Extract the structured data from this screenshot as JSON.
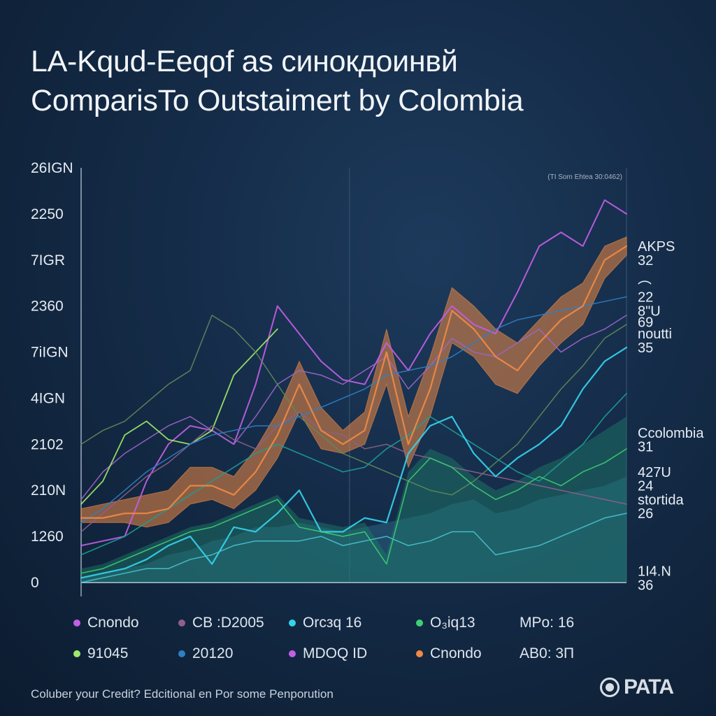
{
  "title_lines": [
    "LA-Kqud-Eeqof as синокдоинвй",
    "ComparisTo Outstaimert by Colombia"
  ],
  "footer": "Coluber your Credit? Edcitional en Por some Penporution",
  "logo": "PATA",
  "colors": {
    "orange": "#ef8a45",
    "purple": "#c35ee6",
    "mauve": "#8f5f8a",
    "cyan": "#35d3ea",
    "green": "#3ecf73",
    "lime": "#9fe86a",
    "teal": "#1e9c93",
    "blue": "#2f7fc4",
    "olive": "#5e8a5a",
    "axis": "#b9c6d6"
  },
  "legend": [
    [
      {
        "label": "Cnondo",
        "color": "#c35ee6"
      },
      {
        "label": "CB :D2005",
        "color": "#8f5f8a"
      },
      {
        "label": "Orcзq 16",
        "color": "#35d3ea"
      },
      {
        "label": "O₃iq13",
        "color": "#3ecf73"
      },
      {
        "label": "MPo: 16",
        "color": null
      }
    ],
    [
      {
        "label": "91045",
        "color": "#9fe86a"
      },
      {
        "label": "20120",
        "color": "#2f7fc4"
      },
      {
        "label": "MDOQ ID",
        "color": "#c35ee6"
      },
      {
        "label": "Cnondo",
        "color": "#ef8a45"
      },
      {
        "label": "AB0: 3П",
        "color": null
      }
    ]
  ],
  "chart_data": {
    "type": "line",
    "title": "LA-Kqud-Eeqof as синокдоинвй ComparisTo Outstaimert by Colombia",
    "yticks": [
      "0",
      "1260",
      "210N",
      "2102",
      "4IGN",
      "7iIGN",
      "2360",
      "7IGR",
      "2250",
      "26IGN"
    ],
    "ylim": [
      0,
      9
    ],
    "xlim": [
      0,
      100
    ],
    "grid": "vertical",
    "annotation": "(TI Som Ehtea 30:0462)",
    "right_labels": [
      {
        "text": "AKPS",
        "y": 7.3,
        "color": "#ef8a45"
      },
      {
        "text": "32",
        "y": 7.0,
        "color": null
      },
      {
        "text": "⌒",
        "y": 6.4,
        "color": null
      },
      {
        "text": "22",
        "y": 6.2,
        "color": null
      },
      {
        "text": "8\"U",
        "y": 5.9,
        "color": null
      },
      {
        "text": "69",
        "y": 5.65,
        "color": null
      },
      {
        "text": "noutti",
        "y": 5.4,
        "color": null
      },
      {
        "text": "35",
        "y": 5.1,
        "color": null
      },
      {
        "text": "Ccolombia",
        "y": 3.25,
        "color": null
      },
      {
        "text": "31",
        "y": 2.95,
        "color": null
      },
      {
        "text": "427U",
        "y": 2.4,
        "color": null
      },
      {
        "text": "24",
        "y": 2.1,
        "color": null
      },
      {
        "text": "stortida",
        "y": 1.8,
        "color": null
      },
      {
        "text": "26",
        "y": 1.5,
        "color": null
      },
      {
        "text": "1I4.N",
        "y": 0.25,
        "color": null
      },
      {
        "text": "36",
        "y": -0.05,
        "color": null
      }
    ],
    "x": [
      0,
      4,
      8,
      12,
      16,
      20,
      24,
      28,
      32,
      36,
      40,
      44,
      48,
      52,
      56,
      60,
      64,
      68,
      72,
      76,
      80,
      84,
      88,
      92,
      96,
      100
    ],
    "series": [
      {
        "color": "#c35ee6",
        "width": 2,
        "values": [
          0.8,
          0.9,
          1.0,
          2.2,
          3.0,
          3.4,
          3.3,
          3.0,
          4.3,
          6.0,
          5.4,
          4.8,
          4.4,
          4.3,
          5.2,
          4.6,
          5.4,
          6.0,
          5.6,
          5.4,
          6.3,
          7.3,
          7.6,
          7.3,
          8.3,
          8.0
        ]
      },
      {
        "color": "#9d66c8",
        "width": 1.5,
        "values": [
          1.8,
          2.4,
          2.8,
          3.1,
          3.4,
          3.6,
          3.3,
          3.0,
          3.6,
          4.3,
          4.6,
          4.5,
          4.3,
          4.6,
          4.9,
          4.2,
          4.7,
          5.3,
          5.0,
          4.9,
          5.2,
          5.5,
          5.0,
          5.3,
          5.5,
          5.8
        ]
      },
      {
        "color": "#9fe86a",
        "width": 1.8,
        "values": [
          1.7,
          2.2,
          3.2,
          3.5,
          3.1,
          3.0,
          3.3,
          4.5,
          5.0,
          5.5,
          null,
          null,
          null,
          null,
          null,
          null,
          null,
          null,
          null,
          null,
          null,
          null,
          null,
          null,
          null,
          null
        ]
      },
      {
        "color": "#5e8a5a",
        "width": 1.5,
        "values": [
          3.0,
          3.3,
          3.5,
          3.9,
          4.3,
          4.6,
          5.8,
          5.5,
          5.0,
          4.3,
          3.6,
          3.2,
          2.8,
          2.6,
          2.4,
          2.2,
          2.0,
          1.9,
          2.2,
          2.6,
          3.0,
          3.6,
          4.2,
          4.7,
          5.3,
          5.6
        ]
      },
      {
        "color": "#8f5f8a",
        "width": 1.5,
        "values": [
          1.1,
          1.5,
          1.9,
          2.3,
          2.6,
          3.0,
          3.4,
          3.1,
          2.9,
          3.4,
          3.7,
          3.3,
          3.2,
          2.9,
          3.0,
          2.8,
          2.7,
          2.5,
          2.4,
          2.3,
          2.2,
          2.1,
          2.0,
          1.9,
          1.8,
          1.7
        ]
      },
      {
        "color": "#1e9c93",
        "width": 1.6,
        "values": [
          0.6,
          0.8,
          1.0,
          1.3,
          1.6,
          1.9,
          2.2,
          2.5,
          2.8,
          3.0,
          2.8,
          2.6,
          2.4,
          2.5,
          2.9,
          3.2,
          3.6,
          3.3,
          3.0,
          2.7,
          2.4,
          2.2,
          2.6,
          3.0,
          3.6,
          4.1
        ]
      },
      {
        "color": "#35d3ea",
        "width": 2.2,
        "values": [
          0.1,
          0.2,
          0.3,
          0.5,
          0.8,
          1.0,
          0.4,
          1.2,
          1.1,
          1.5,
          2.0,
          1.1,
          1.1,
          1.4,
          1.3,
          2.8,
          3.4,
          3.6,
          2.8,
          2.3,
          2.7,
          3.0,
          3.4,
          4.2,
          4.8,
          5.1
        ]
      },
      {
        "color": "#3ecf73",
        "width": 1.5,
        "values": [
          0.2,
          0.3,
          0.5,
          0.7,
          0.9,
          1.1,
          1.2,
          1.4,
          1.6,
          1.8,
          1.2,
          1.1,
          1.0,
          1.1,
          0.4,
          2.2,
          2.7,
          2.5,
          2.1,
          1.8,
          2.0,
          2.3,
          2.1,
          2.4,
          2.6,
          2.9
        ]
      },
      {
        "color": "#2f7fc4",
        "width": 1.5,
        "values": [
          1.3,
          1.6,
          2.0,
          2.4,
          2.7,
          3.0,
          3.2,
          3.3,
          3.4,
          3.4,
          3.6,
          3.8,
          4.0,
          4.2,
          4.5,
          4.6,
          4.7,
          4.9,
          5.2,
          5.5,
          5.7,
          5.8,
          5.9,
          6.0,
          6.1,
          6.2
        ]
      },
      {
        "color": "#46c2cf",
        "width": 1.5,
        "values": [
          0.0,
          0.1,
          0.2,
          0.3,
          0.3,
          0.5,
          0.6,
          0.8,
          0.9,
          0.9,
          0.9,
          1.0,
          0.8,
          0.9,
          1.0,
          0.8,
          0.9,
          1.1,
          1.1,
          0.6,
          0.7,
          0.8,
          1.0,
          1.2,
          1.4,
          1.5
        ]
      },
      {
        "color": "#ef8a45",
        "width": 2.2,
        "values": [
          1.4,
          1.4,
          1.5,
          1.5,
          1.6,
          2.1,
          2.1,
          1.9,
          2.4,
          3.2,
          4.3,
          3.3,
          3.0,
          3.3,
          5.0,
          3.0,
          4.2,
          5.9,
          5.5,
          4.9,
          4.6,
          5.2,
          5.7,
          6.0,
          7.0,
          7.3
        ]
      }
    ],
    "bands": [
      {
        "color": "#ef8a45",
        "lower": [
          1.3,
          1.3,
          1.3,
          1.2,
          1.3,
          1.7,
          1.8,
          1.6,
          2.0,
          2.7,
          3.7,
          2.9,
          2.8,
          3.0,
          4.3,
          2.5,
          3.6,
          5.2,
          4.9,
          4.3,
          4.1,
          4.7,
          5.2,
          5.6,
          6.6,
          7.1
        ],
        "upper": [
          1.6,
          1.7,
          1.8,
          1.9,
          2.0,
          2.5,
          2.5,
          2.3,
          2.9,
          3.7,
          4.8,
          3.8,
          3.3,
          3.7,
          5.5,
          3.6,
          4.9,
          6.4,
          6.0,
          5.5,
          5.2,
          5.7,
          6.2,
          6.5,
          7.3,
          7.5
        ]
      }
    ],
    "areas": [
      {
        "color": "#2f6f8f",
        "values": [
          0.1,
          0.2,
          0.3,
          0.4,
          0.6,
          0.7,
          0.9,
          1.0,
          1.2,
          1.2,
          1.3,
          1.2,
          1.1,
          1.2,
          1.3,
          1.4,
          1.5,
          1.7,
          1.8,
          1.5,
          1.6,
          1.8,
          1.9,
          2.0,
          2.1,
          2.3
        ]
      },
      {
        "color": "#1f7f6a",
        "values": [
          0.3,
          0.4,
          0.6,
          0.8,
          1.0,
          1.2,
          1.3,
          1.5,
          1.7,
          1.9,
          1.4,
          1.3,
          1.2,
          1.3,
          0.6,
          2.4,
          2.9,
          2.7,
          2.3,
          2.0,
          2.2,
          2.5,
          2.7,
          3.0,
          3.3,
          3.6
        ]
      }
    ]
  }
}
